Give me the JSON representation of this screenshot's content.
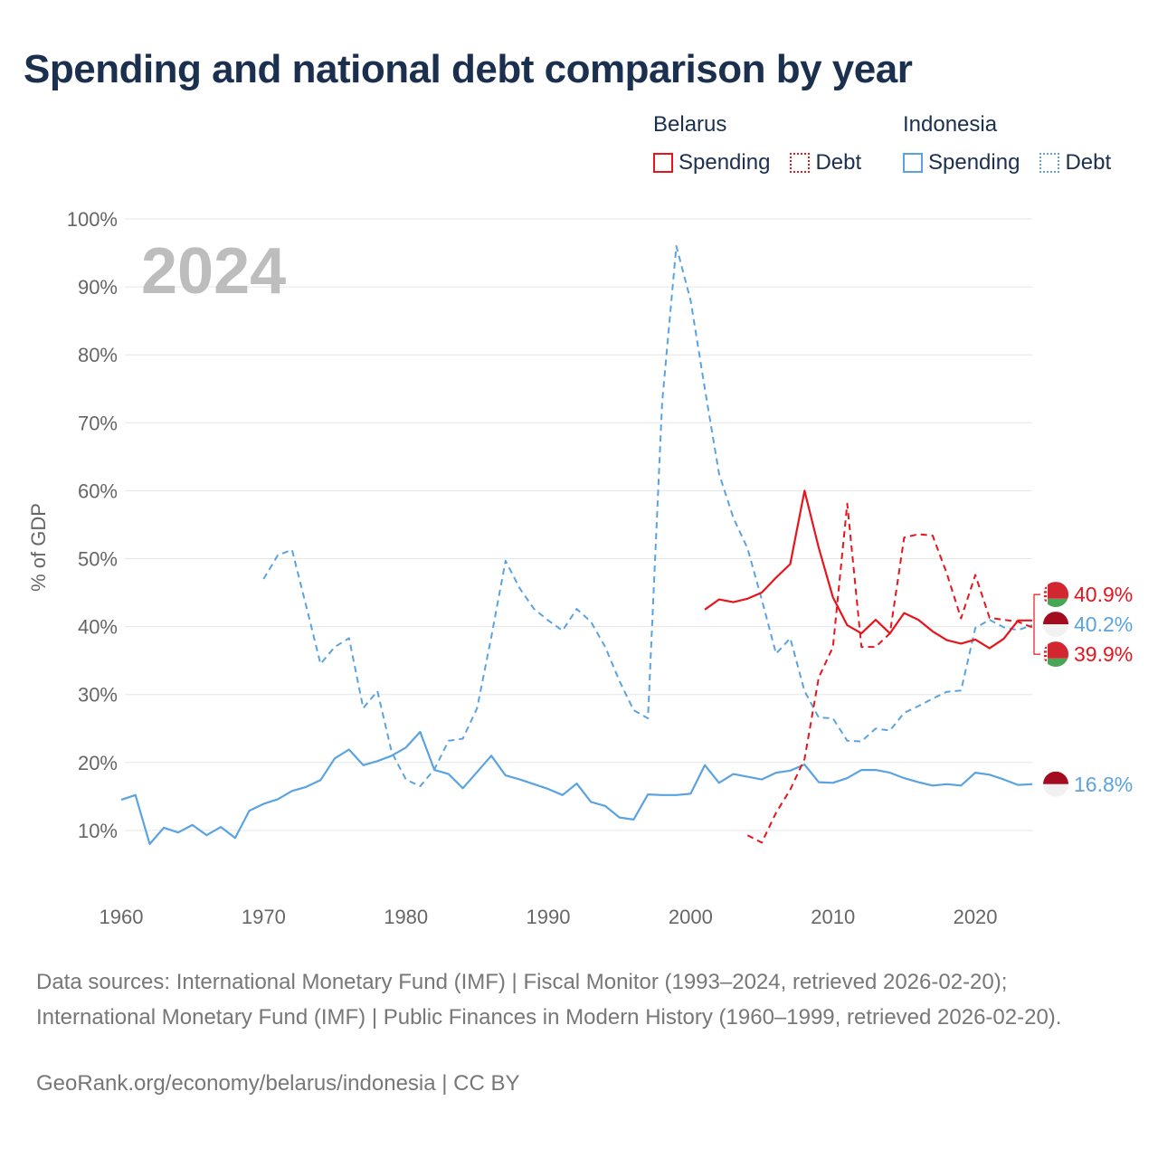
{
  "chart_data": {
    "type": "line",
    "title": "Spending and national debt comparison by year",
    "year_label": "2024",
    "ylabel": "% of GDP",
    "xlabel": "",
    "xlim": [
      1960,
      2024
    ],
    "ylim": [
      0,
      100
    ],
    "x_ticks": [
      1960,
      1970,
      1980,
      1990,
      2000,
      2010,
      2020
    ],
    "y_ticks": [
      10,
      20,
      30,
      40,
      50,
      60,
      70,
      80,
      90,
      100
    ],
    "y_tick_suffix": "%",
    "grid": true,
    "legend": {
      "placement": "top-right",
      "groups": [
        {
          "country": "Belarus",
          "items": [
            {
              "label": "Spending",
              "style": "solid"
            },
            {
              "label": "Debt",
              "style": "dotted"
            }
          ],
          "color": "#e8141c"
        },
        {
          "country": "Indonesia",
          "items": [
            {
              "label": "Spending",
              "style": "solid"
            },
            {
              "label": "Debt",
              "style": "dotted"
            }
          ],
          "color": "#5ba3e0"
        }
      ]
    },
    "series": [
      {
        "name": "Indonesia Spending",
        "country": "Indonesia",
        "kind": "spending",
        "color": "#5ba3e0",
        "dash": "solid",
        "x": [
          1960,
          1961,
          1962,
          1963,
          1964,
          1965,
          1966,
          1967,
          1968,
          1969,
          1970,
          1971,
          1972,
          1973,
          1974,
          1975,
          1976,
          1977,
          1978,
          1979,
          1980,
          1981,
          1982,
          1983,
          1984,
          1985,
          1986,
          1987,
          1988,
          1989,
          1990,
          1991,
          1992,
          1993,
          1994,
          1995,
          1996,
          1997,
          1998,
          1999,
          2000,
          2001,
          2002,
          2003,
          2004,
          2005,
          2006,
          2007,
          2008,
          2009,
          2010,
          2011,
          2012,
          2013,
          2014,
          2015,
          2016,
          2017,
          2018,
          2019,
          2020,
          2021,
          2022,
          2023,
          2024
        ],
        "y": [
          14.5,
          15.2,
          8.0,
          10.4,
          9.7,
          10.8,
          9.3,
          10.5,
          8.9,
          12.9,
          13.9,
          14.6,
          15.8,
          16.4,
          17.4,
          20.6,
          21.9,
          19.6,
          20.2,
          21.0,
          22.2,
          24.5,
          18.9,
          18.3,
          16.2,
          18.6,
          21.0,
          18.1,
          17.5,
          16.8,
          16.1,
          15.2,
          16.9,
          14.2,
          13.6,
          11.9,
          11.6,
          15.3,
          15.2,
          15.2,
          15.4,
          19.6,
          17.0,
          18.3,
          17.9,
          17.5,
          18.5,
          18.8,
          19.7,
          17.1,
          17.0,
          17.7,
          18.9,
          18.9,
          18.5,
          17.7,
          17.1,
          16.6,
          16.8,
          16.6,
          18.5,
          18.2,
          17.5,
          16.7,
          16.8
        ]
      },
      {
        "name": "Indonesia Debt",
        "country": "Indonesia",
        "kind": "debt",
        "color": "#5ba3e0",
        "dash": "dashed",
        "x": [
          1970,
          1971,
          1972,
          1973,
          1974,
          1975,
          1976,
          1977,
          1978,
          1979,
          1980,
          1981,
          1982,
          1983,
          1984,
          1985,
          1986,
          1987,
          1988,
          1989,
          1990,
          1991,
          1992,
          1993,
          1994,
          1995,
          1996,
          1997,
          1998,
          1999,
          2000,
          2001,
          2002,
          2003,
          2004,
          2005,
          2006,
          2007,
          2008,
          2009,
          2010,
          2011,
          2012,
          2013,
          2014,
          2015,
          2016,
          2017,
          2018,
          2019,
          2020,
          2021,
          2022,
          2023,
          2024
        ],
        "y": [
          47.0,
          50.5,
          51.3,
          43.0,
          34.5,
          37.0,
          38.3,
          28.0,
          30.5,
          21.5,
          17.5,
          16.5,
          19.0,
          23.2,
          23.5,
          28.0,
          38.5,
          49.7,
          45.6,
          42.6,
          40.9,
          39.4,
          42.6,
          40.7,
          37.0,
          32.0,
          27.7,
          26.5,
          73.0,
          96.0,
          88.0,
          75.0,
          62.5,
          56.0,
          51.5,
          44.0,
          36.0,
          38.3,
          30.5,
          26.6,
          26.5,
          23.2,
          23.1,
          25.0,
          24.7,
          27.3,
          28.3,
          29.4,
          30.4,
          30.6,
          39.8,
          41.0,
          39.9,
          39.5,
          40.2
        ]
      },
      {
        "name": "Belarus Spending",
        "country": "Belarus",
        "kind": "spending",
        "color": "#e8141c",
        "dash": "solid",
        "x": [
          2001,
          2002,
          2003,
          2004,
          2005,
          2006,
          2007,
          2008,
          2009,
          2010,
          2011,
          2012,
          2013,
          2014,
          2015,
          2016,
          2017,
          2018,
          2019,
          2020,
          2021,
          2022,
          2023,
          2024
        ],
        "y": [
          42.5,
          44.0,
          43.6,
          44.1,
          45.0,
          47.2,
          49.2,
          60.0,
          51.6,
          44.3,
          40.2,
          39.0,
          41.0,
          39.0,
          42.0,
          41.0,
          39.3,
          38.0,
          37.5,
          38.1,
          36.8,
          38.2,
          40.9,
          40.9
        ]
      },
      {
        "name": "Belarus Debt",
        "country": "Belarus",
        "kind": "debt",
        "color": "#e8141c",
        "dash": "dashed",
        "x": [
          2004,
          2005,
          2006,
          2007,
          2008,
          2009,
          2010,
          2011,
          2012,
          2013,
          2014,
          2015,
          2016,
          2017,
          2018,
          2019,
          2020,
          2021,
          2022,
          2023,
          2024
        ],
        "y": [
          9.3,
          8.2,
          12.6,
          16.0,
          20.5,
          32.5,
          37.0,
          58.1,
          37.0,
          37.0,
          39.0,
          53.1,
          53.6,
          53.4,
          47.8,
          41.2,
          47.6,
          41.3,
          41.0,
          40.7,
          39.9
        ]
      }
    ],
    "end_labels": [
      {
        "text": "40.9%",
        "value": 40.9,
        "color": "#e8141c",
        "flag": "belarus"
      },
      {
        "text": "40.2%",
        "value": 40.2,
        "color": "#5ba3e0",
        "flag": "indonesia"
      },
      {
        "text": "39.9%",
        "value": 39.9,
        "color": "#e8141c",
        "flag": "belarus"
      },
      {
        "text": "16.8%",
        "value": 16.8,
        "color": "#5ba3e0",
        "flag": "indonesia"
      }
    ]
  },
  "legend": {
    "belarus": {
      "country": "Belarus",
      "spending": "Spending",
      "debt": "Debt"
    },
    "indonesia": {
      "country": "Indonesia",
      "spending": "Spending",
      "debt": "Debt"
    }
  },
  "footer": {
    "sources": "Data sources: International Monetary Fund (IMF) | Fiscal Monitor (1993–2024, retrieved 2026-02-20); International Monetary Fund (IMF) | Public Finances in Modern History (1960–1999, retrieved 2026-02-20).",
    "attribution": "GeoRank.org/economy/belarus/indonesia | CC BY"
  },
  "colors": {
    "title": "#1b2f4f",
    "grid": "#e6e6e6",
    "axis_text": "#666666",
    "belarus": "#e8141c",
    "indonesia": "#5ba3e0"
  }
}
